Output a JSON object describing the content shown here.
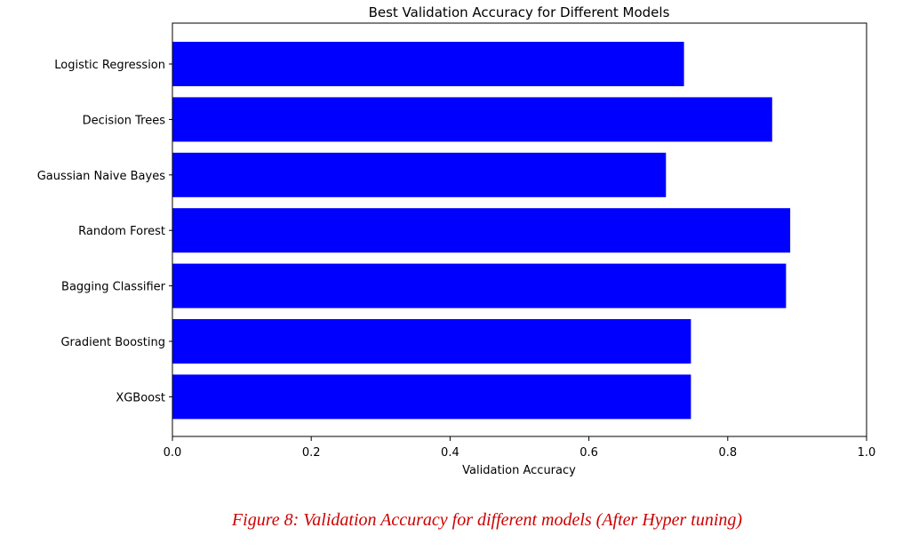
{
  "chart_data": {
    "type": "bar",
    "orientation": "horizontal",
    "title": "Best Validation Accuracy for Different Models",
    "xlabel": "Validation Accuracy",
    "ylabel": "",
    "xlim": [
      0,
      1
    ],
    "xticks": [
      "0.0",
      "0.2",
      "0.4",
      "0.6",
      "0.8",
      "1.0"
    ],
    "categories": [
      "Logistic Regression",
      "Decision Trees",
      "Gaussian Naive Bayes",
      "Random Forest",
      "Bagging Classifier",
      "Gradient Boosting",
      "XGBoost"
    ],
    "values": [
      0.737,
      0.864,
      0.711,
      0.89,
      0.884,
      0.747,
      0.747
    ],
    "bar_color": "#0000ff",
    "grid": false,
    "legend": "none"
  },
  "caption": "Figure 8: Validation Accuracy for different models (After Hyper tuning)",
  "caption_color": "#cc0000"
}
